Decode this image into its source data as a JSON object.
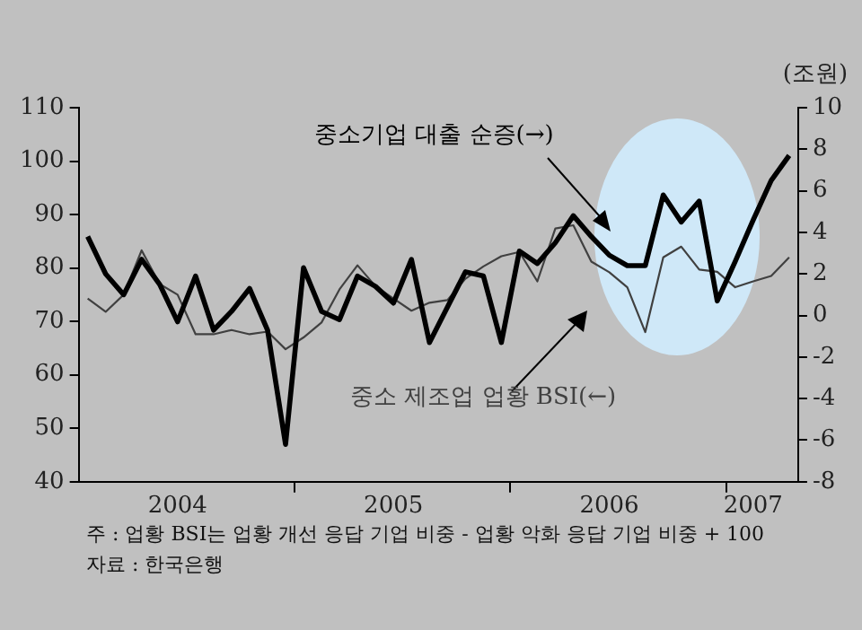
{
  "chart_data": {
    "type": "line",
    "y2label": "(조원)",
    "categories": [
      null,
      null,
      null,
      null,
      null,
      "2004",
      null,
      null,
      null,
      null,
      null,
      null,
      null,
      null,
      null,
      null,
      null,
      "2005",
      null,
      null,
      null,
      null,
      null,
      null,
      null,
      null,
      null,
      null,
      null,
      "2006",
      null,
      null,
      null,
      null,
      null,
      null,
      null,
      "2007",
      null,
      null
    ],
    "series": [
      {
        "name": "중소 제조업 업황 BSI(←)",
        "color": "#404040",
        "axis": "y",
        "values": [
          74.3,
          71.8,
          75,
          83.3,
          77,
          75,
          67.6,
          67.6,
          68.4,
          67.6,
          68.1,
          64.8,
          67,
          69.8,
          76,
          80.5,
          76.6,
          74.3,
          72,
          73.5,
          74,
          78,
          80.3,
          82.2,
          83,
          77.5,
          87.4,
          88,
          81.2,
          79.2,
          76.4,
          68,
          82,
          84,
          79.7,
          79.3,
          76.4,
          77.5,
          78.5,
          82
        ]
      },
      {
        "name": "중소기업 대출 순증(→)",
        "color": "#000000",
        "axis": "y2",
        "values": [
          3.8,
          2,
          1,
          2.7,
          1.5,
          -0.3,
          1.9,
          -0.7,
          0.2,
          1.3,
          -0.7,
          -6.2,
          2.3,
          0.2,
          -0.2,
          1.9,
          1.4,
          0.6,
          2.7,
          -1.3,
          0.4,
          2.1,
          1.9,
          -1.3,
          3.1,
          2.5,
          3.5,
          4.8,
          3.8,
          2.9,
          2.4,
          2.4,
          5.8,
          4.5,
          5.5,
          0.7,
          2.6,
          4.6,
          6.5,
          7.7
        ]
      }
    ],
    "ylim": [
      40,
      110
    ],
    "yticks": [
      40,
      50,
      60,
      70,
      80,
      90,
      100,
      110
    ],
    "y2lim": [
      -8,
      10
    ],
    "y2ticks": [
      -8,
      -6,
      -4,
      -2,
      0,
      2,
      4,
      6,
      8,
      10
    ],
    "grid": false,
    "legend": false,
    "marker": "none",
    "annotations": [
      "주 : 업황 BSI는 업황 개선 응답 기업 비중 - 업황 악화 응답 기업 비중 + 100",
      "자료 : 한국은행"
    ]
  }
}
